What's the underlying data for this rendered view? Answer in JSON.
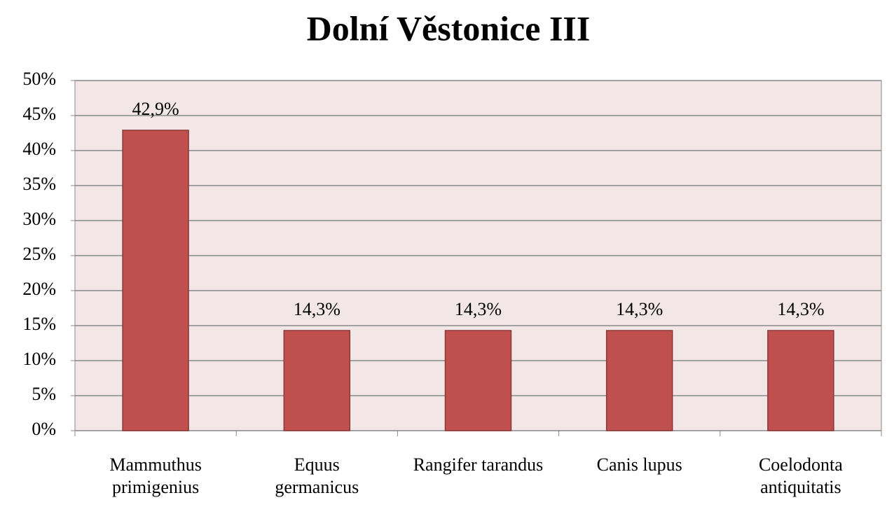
{
  "chart_data": {
    "type": "bar",
    "title": "Dolní Věstonice III",
    "categories": [
      "Mammuthus primigenius",
      "Equus germanicus",
      "Rangifer tarandus",
      "Canis lupus",
      "Coelodonta antiquitatis"
    ],
    "values": [
      42.9,
      14.3,
      14.3,
      14.3,
      14.3
    ],
    "value_labels": [
      "42,9%",
      "14,3%",
      "14,3%",
      "14,3%",
      "14,3%"
    ],
    "color": "#c0504d",
    "ylim": [
      0,
      50
    ],
    "yticks": [
      {
        "value": 0,
        "label": "0%"
      },
      {
        "value": 5,
        "label": "5%"
      },
      {
        "value": 10,
        "label": "10%"
      },
      {
        "value": 15,
        "label": "15%"
      },
      {
        "value": 20,
        "label": "20%"
      },
      {
        "value": 25,
        "label": "25%"
      },
      {
        "value": 30,
        "label": "30%"
      },
      {
        "value": 35,
        "label": "35%"
      },
      {
        "value": 40,
        "label": "40%"
      },
      {
        "value": 45,
        "label": "45%"
      },
      {
        "value": 50,
        "label": "50%"
      }
    ],
    "grid": true
  }
}
